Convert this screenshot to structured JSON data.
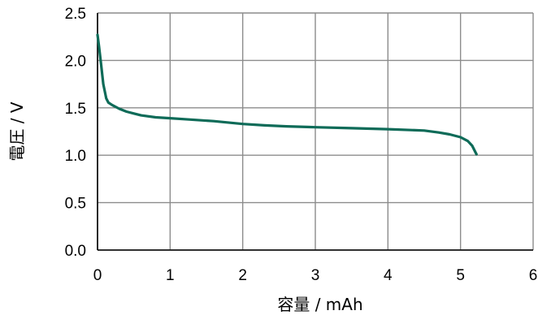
{
  "chart_data": {
    "type": "line",
    "xlabel": "容量 / mAh",
    "ylabel": "電圧 / V",
    "xlim": [
      0,
      6
    ],
    "ylim": [
      0,
      2.5
    ],
    "x_ticks": [
      "0",
      "1",
      "2",
      "3",
      "4",
      "5",
      "6"
    ],
    "y_ticks": [
      "0.0",
      "0.5",
      "1.0",
      "1.5",
      "2.0",
      "2.5"
    ],
    "grid": true,
    "legend": "none",
    "series": [
      {
        "color": "#0e6b58",
        "points": [
          [
            0.0,
            2.27
          ],
          [
            0.02,
            2.15
          ],
          [
            0.05,
            1.95
          ],
          [
            0.08,
            1.75
          ],
          [
            0.12,
            1.6
          ],
          [
            0.15,
            1.555
          ],
          [
            0.2,
            1.53
          ],
          [
            0.3,
            1.49
          ],
          [
            0.4,
            1.46
          ],
          [
            0.5,
            1.44
          ],
          [
            0.6,
            1.42
          ],
          [
            0.8,
            1.4
          ],
          [
            1.0,
            1.39
          ],
          [
            1.2,
            1.38
          ],
          [
            1.6,
            1.36
          ],
          [
            2.0,
            1.33
          ],
          [
            2.3,
            1.315
          ],
          [
            2.6,
            1.305
          ],
          [
            3.0,
            1.295
          ],
          [
            3.5,
            1.285
          ],
          [
            4.0,
            1.275
          ],
          [
            4.5,
            1.26
          ],
          [
            4.7,
            1.24
          ],
          [
            4.85,
            1.22
          ],
          [
            5.0,
            1.19
          ],
          [
            5.1,
            1.15
          ],
          [
            5.16,
            1.1
          ],
          [
            5.2,
            1.04
          ],
          [
            5.22,
            1.01
          ]
        ]
      }
    ]
  }
}
